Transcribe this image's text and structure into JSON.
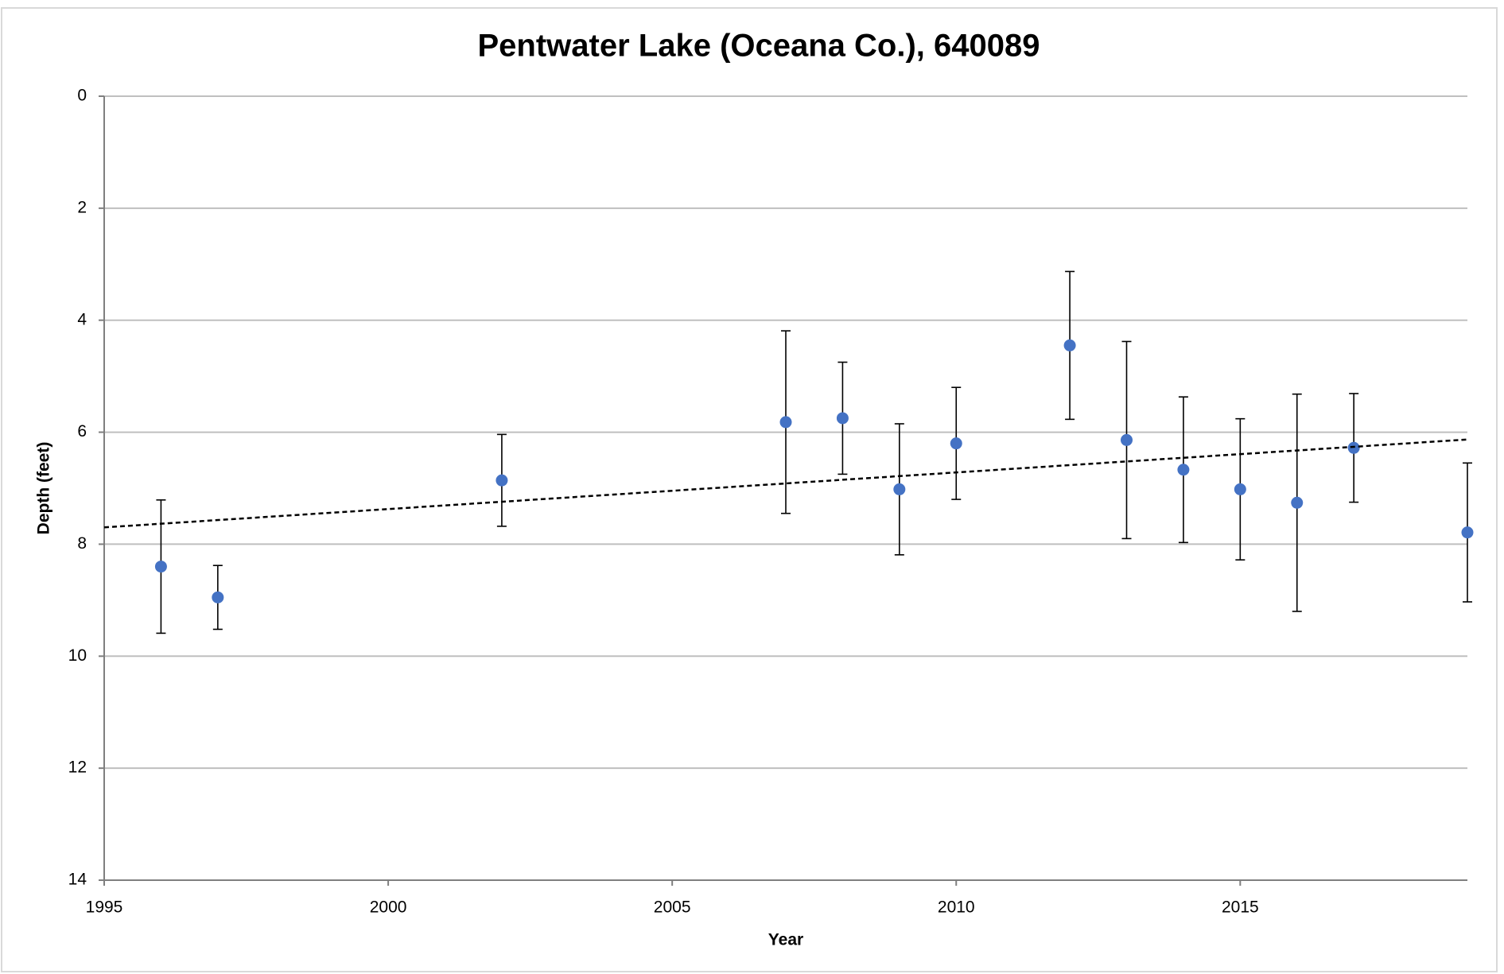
{
  "chart_data": {
    "type": "scatter",
    "title": "Pentwater Lake (Oceana Co.), 640089",
    "x_label": "Year",
    "y_label": "Depth (feet)",
    "series": [
      {
        "color": "#4472c4",
        "x": [
          1996,
          1997,
          2002,
          2007,
          2008,
          2009,
          2010,
          2012,
          2013,
          2014,
          2015,
          2016,
          2017,
          2019
        ],
        "values": [
          8.4,
          8.95,
          6.86,
          5.82,
          5.75,
          7.02,
          6.2,
          4.45,
          6.14,
          6.67,
          7.02,
          7.26,
          6.28,
          7.79
        ],
        "errors": [
          1.19,
          0.57,
          0.82,
          1.63,
          1.0,
          1.17,
          1.0,
          1.32,
          1.76,
          1.3,
          1.26,
          1.94,
          0.97,
          1.24
        ]
      }
    ],
    "trendline": {
      "x": [
        1995,
        2019
      ],
      "values": [
        7.7,
        6.13
      ],
      "color": "#000000",
      "dashed": true
    },
    "xlim": [
      1995,
      2019
    ],
    "xticks": [
      1995,
      2000,
      2005,
      2010,
      2015
    ],
    "ylim": [
      0,
      14
    ],
    "yticks": [
      0,
      2,
      4,
      6,
      8,
      10,
      12,
      14
    ],
    "y_reversed": true,
    "grid": true
  }
}
